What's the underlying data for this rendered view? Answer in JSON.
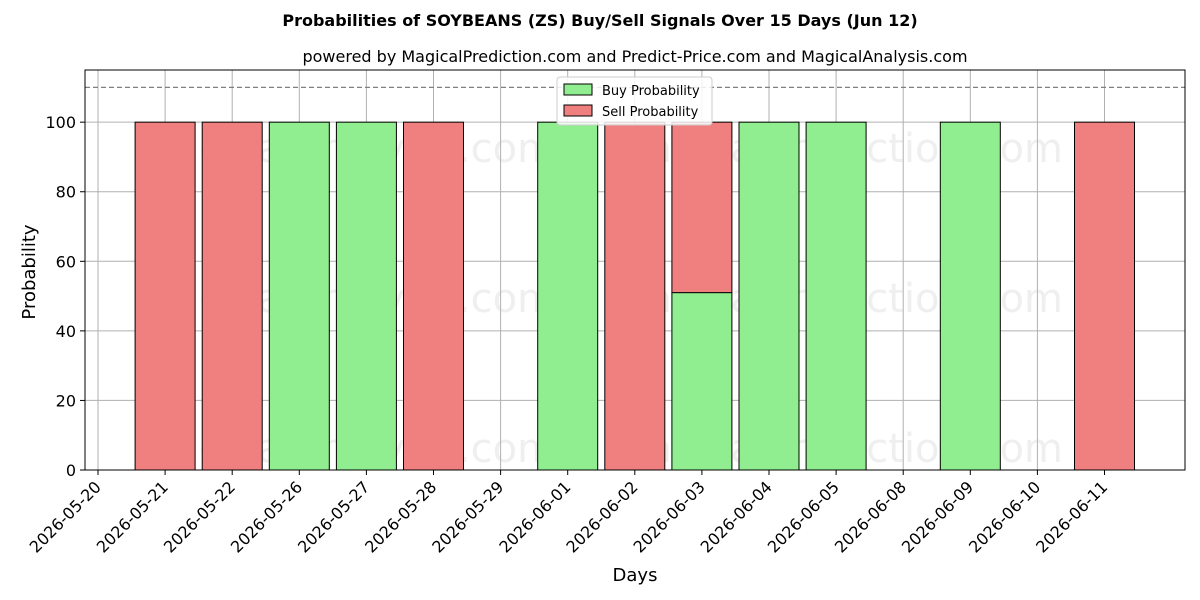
{
  "chart_data": {
    "type": "bar",
    "stacked": true,
    "title": "Probabilities of SOYBEANS (ZS) Buy/Sell Signals Over 15 Days (Jun 12)",
    "subtitle": "powered by MagicalPrediction.com and Predict-Price.com and MagicalAnalysis.com",
    "xlabel": "Days",
    "ylabel": "Probability",
    "ylim": [
      0,
      115
    ],
    "yticks": [
      0,
      20,
      40,
      60,
      80,
      100
    ],
    "reference_line": 110,
    "grid": true,
    "legend_position": "top-center",
    "categories": [
      "2026-05-20",
      "2026-05-21",
      "2026-05-22",
      "2026-05-26",
      "2026-05-27",
      "2026-05-28",
      "2026-05-29",
      "2026-06-01",
      "2026-06-02",
      "2026-06-03",
      "2026-06-04",
      "2026-06-05",
      "2026-06-08",
      "2026-06-09",
      "2026-06-10",
      "2026-06-11"
    ],
    "series": [
      {
        "name": "Buy Probability",
        "color": "#90ee90",
        "values": [
          0,
          0,
          0,
          100,
          100,
          0,
          0,
          100,
          0,
          51,
          100,
          100,
          0,
          100,
          0,
          0
        ]
      },
      {
        "name": "Sell Probability",
        "color": "#f08080",
        "values": [
          0,
          100,
          100,
          0,
          0,
          100,
          0,
          0,
          100,
          49,
          0,
          0,
          0,
          0,
          0,
          100
        ]
      }
    ],
    "watermarks": [
      "MagicalAnalysis.com",
      "MagicalPrediction.com"
    ]
  }
}
